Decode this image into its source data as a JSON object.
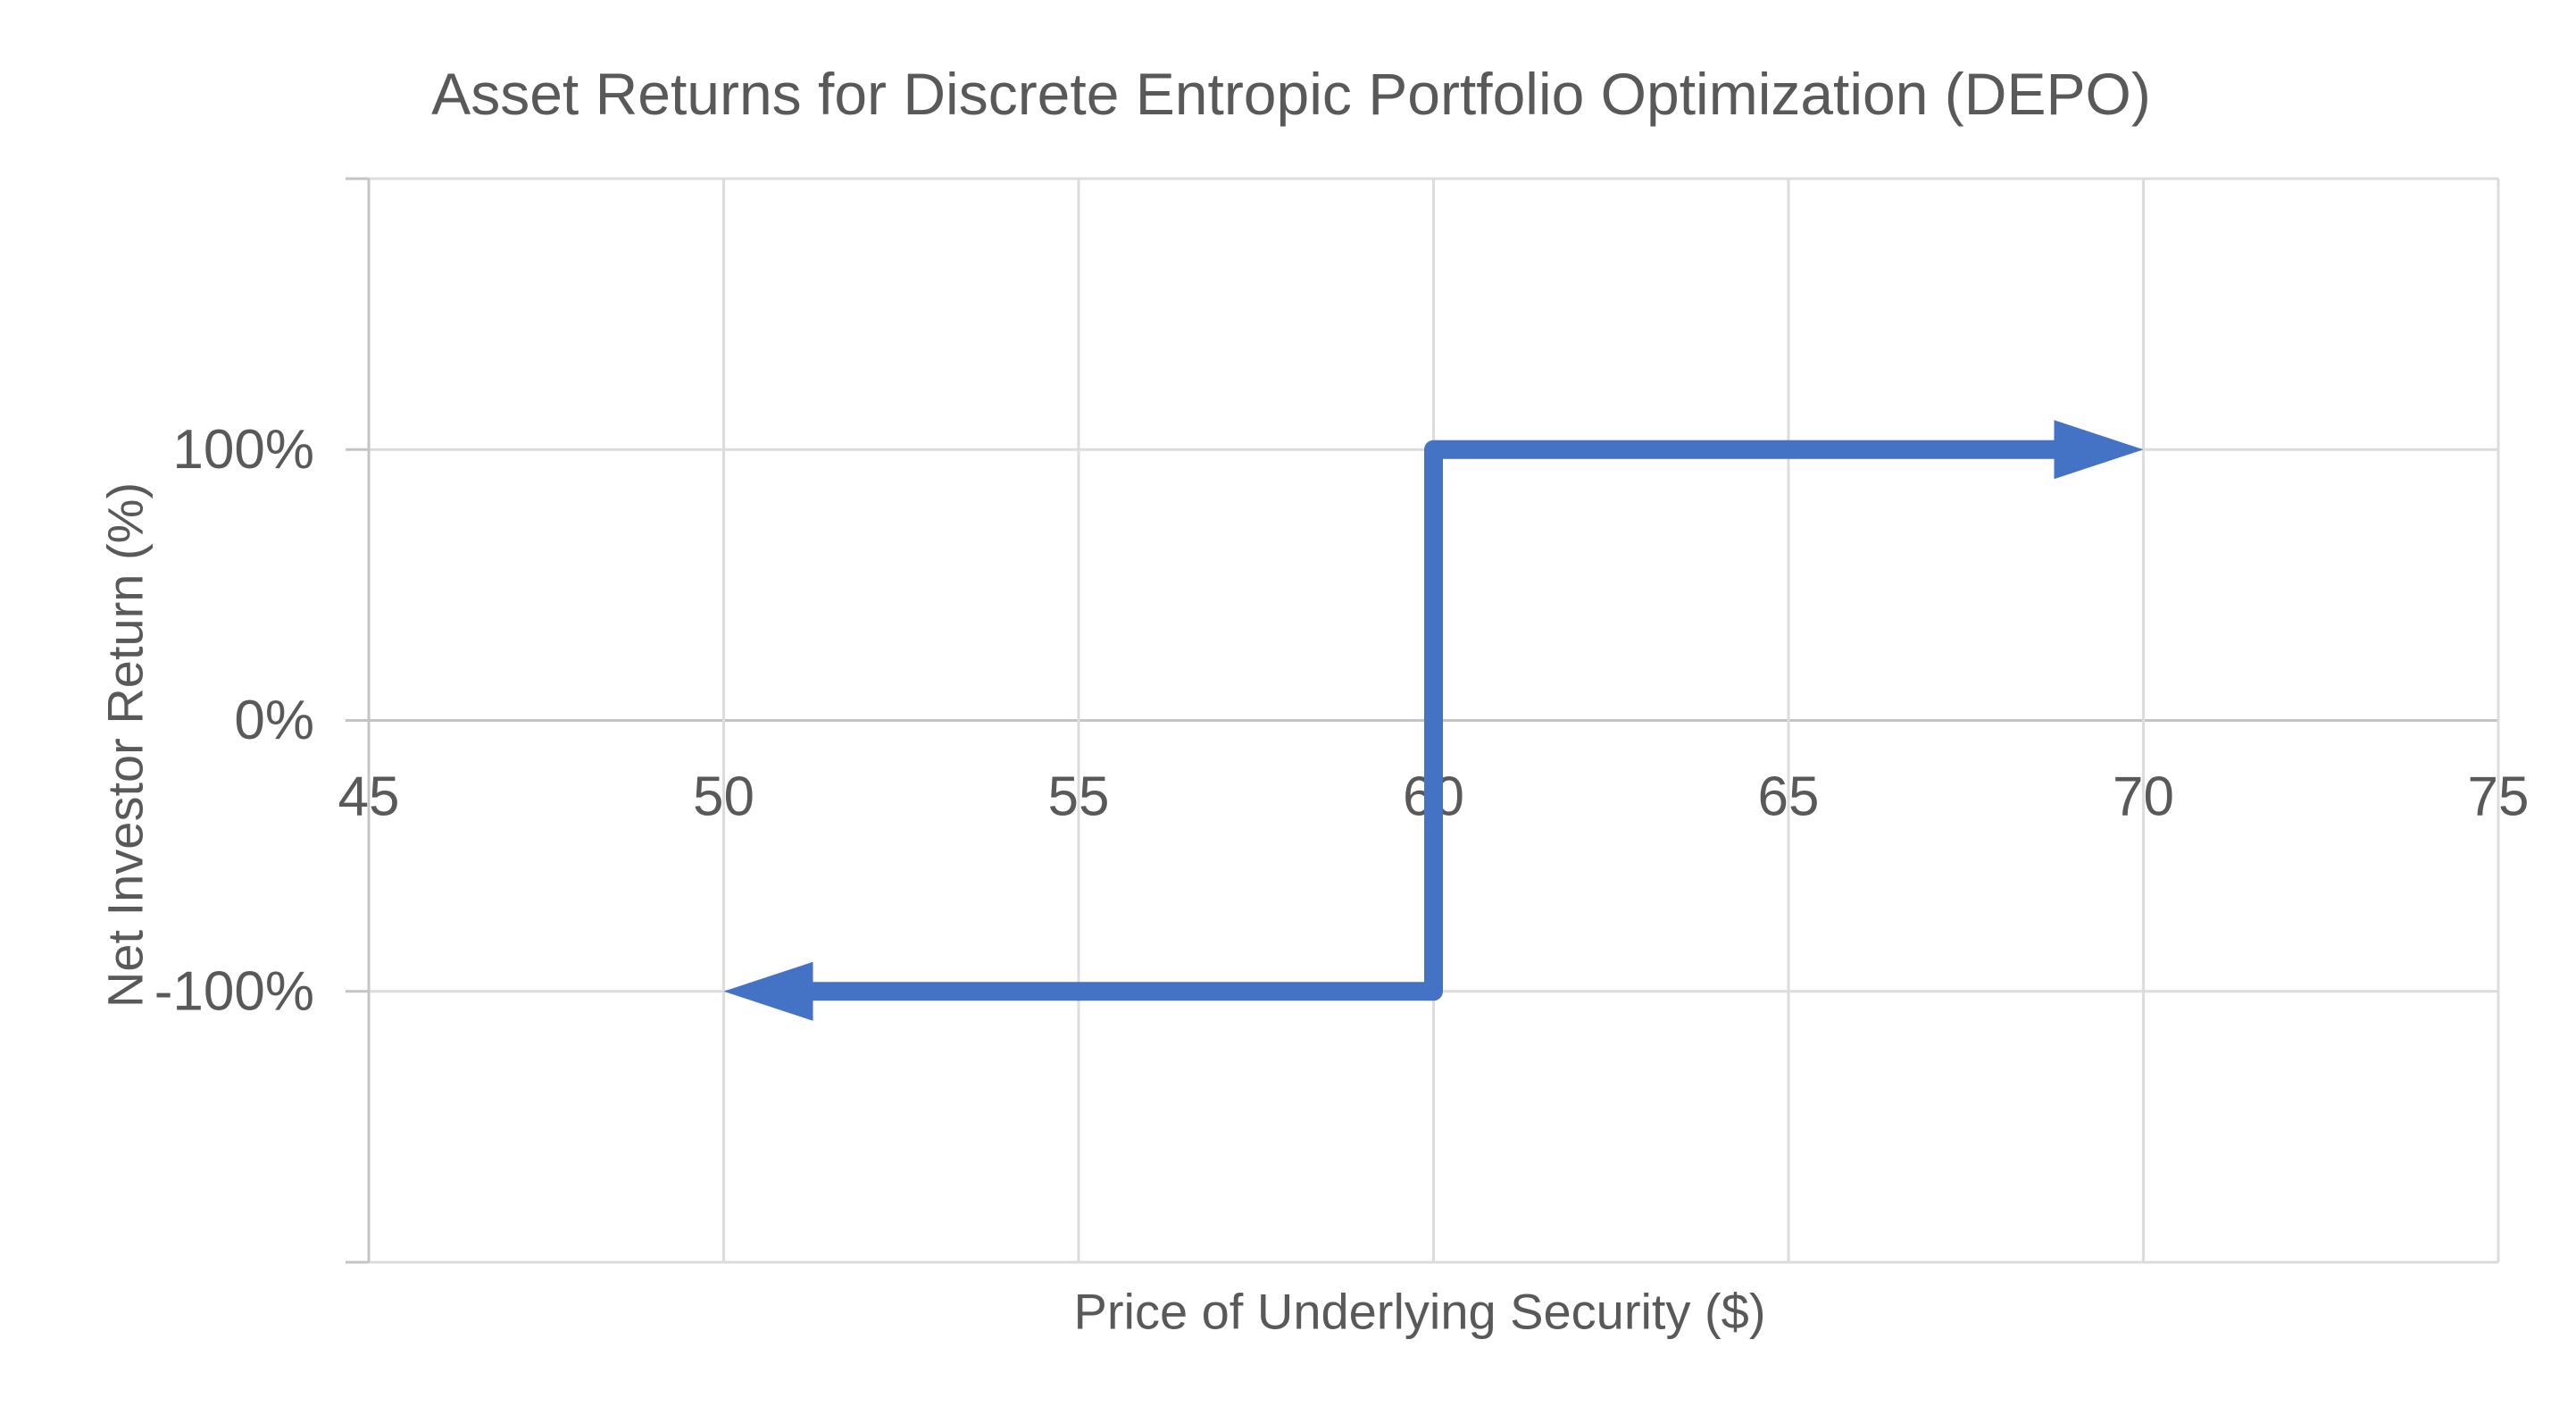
{
  "chart": {
    "title": "Asset Returns for Discrete Entropic Portfolio Optimization (DEPO)",
    "x_axis_title": "Price of Underlying Security ($)",
    "y_axis_title": "Net Investor Return (%)"
  },
  "chart_data": {
    "type": "line",
    "title": "Asset Returns for Discrete Entropic Portfolio Optimization (DEPO)",
    "xlabel": "Price of Underlying Security ($)",
    "ylabel": "Net Investor Return (%)",
    "xlim": [
      45,
      75
    ],
    "ylim": [
      -200,
      200
    ],
    "x_ticks": [
      45,
      50,
      55,
      60,
      65,
      70,
      75
    ],
    "y_major_unit": 100,
    "y_ticks": [
      {
        "value": 100,
        "label": "100%"
      },
      {
        "value": 0,
        "label": "0%"
      },
      {
        "value": -100,
        "label": "-100%"
      }
    ],
    "grid": true,
    "legend": "none",
    "series": [
      {
        "name": "asset-return-step-function",
        "color": "#4472C4",
        "stroke_width": 21,
        "points": [
          {
            "x": 50,
            "y": -100,
            "arrow": "left"
          },
          {
            "x": 60,
            "y": -100
          },
          {
            "x": 60,
            "y": 100
          },
          {
            "x": 70,
            "y": 100,
            "arrow": "right"
          }
        ]
      }
    ]
  },
  "colors": {
    "accent_blue": "#4472C4",
    "grid_line": "#DCDCDC",
    "axis_line": "#C4C4C4",
    "text": "#595959",
    "background": "#FFFFFF",
    "chart_border": "#D5D5D5"
  }
}
